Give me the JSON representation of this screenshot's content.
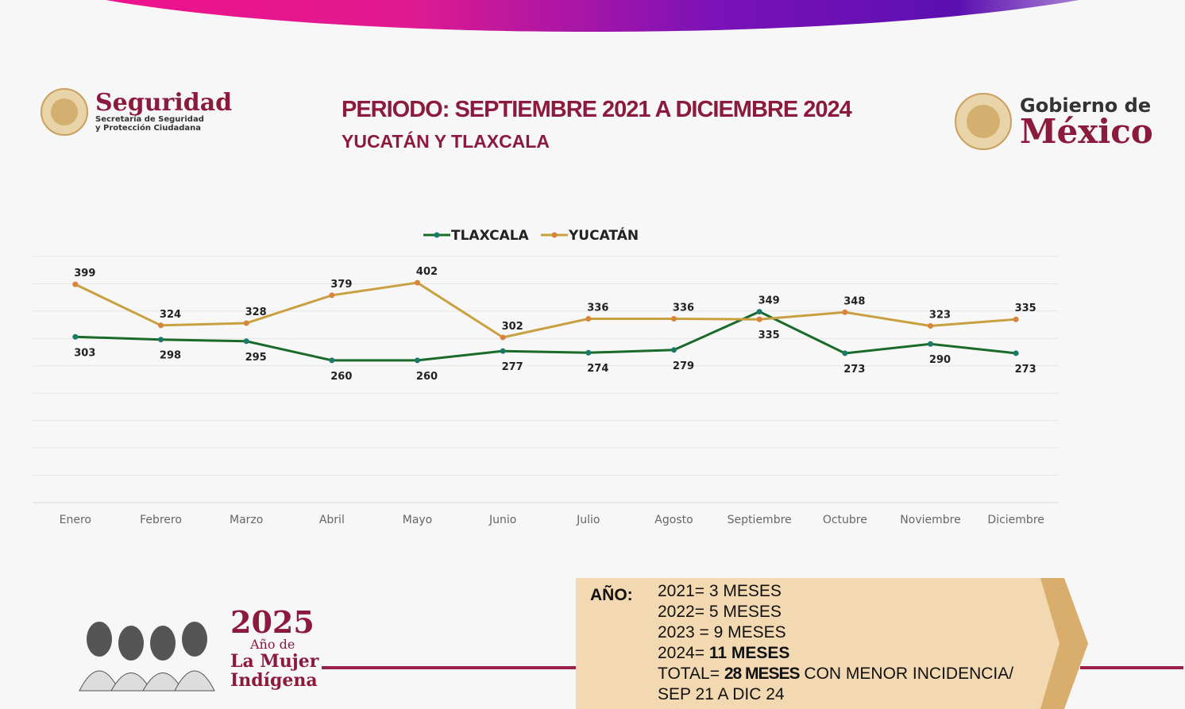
{
  "header": {
    "title": "PERIODO: SEPTIEMBRE 2021 A DICIEMBRE 2024",
    "subtitle": "YUCATÁN Y TLAXCALA",
    "left_logo": {
      "name": "Seguridad",
      "sub1": "Secretaría de Seguridad",
      "sub2": "y Protección Ciudadana"
    },
    "right_logo": {
      "line1": "Gobierno de",
      "line2": "México"
    }
  },
  "colors": {
    "tlaxcala": "#1a6b2a",
    "yucatan": "#c9a040",
    "accent": "#8b1a3d",
    "banner_start": "#f50f8a",
    "banner_end": "#5c0fb0"
  },
  "chart_data": {
    "type": "line",
    "categories": [
      "Enero",
      "Febrero",
      "Marzo",
      "Abril",
      "Mayo",
      "Junio",
      "Julio",
      "Agosto",
      "Septiembre",
      "Octubre",
      "Noviembre",
      "Diciembre"
    ],
    "series": [
      {
        "name": "TLAXCALA",
        "values": [
          303,
          298,
          295,
          260,
          260,
          277,
          274,
          279,
          349,
          273,
          290,
          273
        ]
      },
      {
        "name": "YUCATÁN",
        "values": [
          399,
          324,
          328,
          379,
          402,
          302,
          336,
          336,
          335,
          348,
          323,
          335
        ]
      }
    ],
    "ylim": [
      0,
      450
    ],
    "grid": true,
    "legend": "top-center"
  },
  "summary": {
    "label": "AÑO:",
    "lines": [
      {
        "pre": "2021= 3  MESES",
        "bold": ""
      },
      {
        "pre": "2022= 5  MESES",
        "bold": ""
      },
      {
        "pre": "2023 = 9 MESES",
        "bold": ""
      },
      {
        "pre": "2024= ",
        "bold": "11  MESES"
      }
    ],
    "total_pre": "TOTAL= ",
    "total_bold": "28 MESES",
    "total_post": " CON MENOR INCIDENCIA/",
    "period": "SEP 21  A DIC 24"
  },
  "footer": {
    "year": "2025",
    "line1": "Año de",
    "line2": "La Mujer",
    "line3": "Indígena"
  }
}
